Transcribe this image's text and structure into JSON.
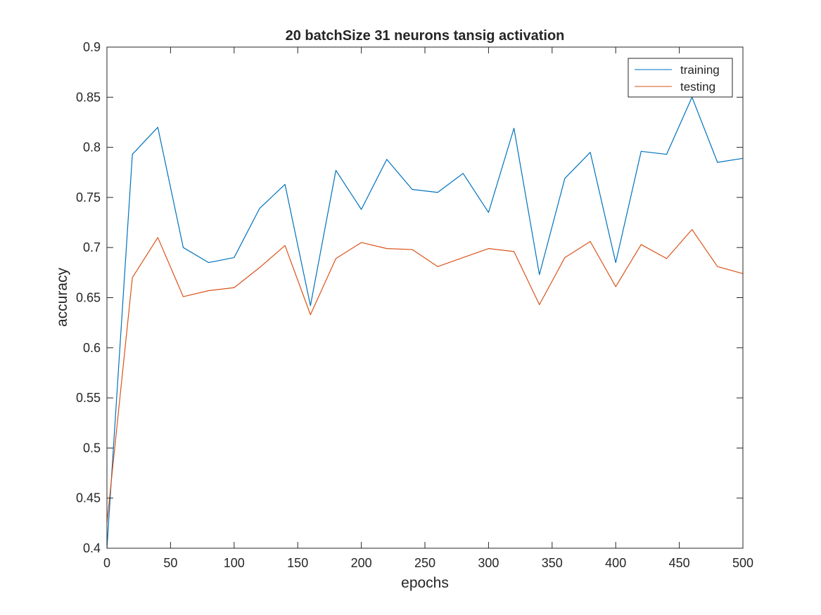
{
  "chart_data": {
    "type": "line",
    "title": "20 batchSize 31 neurons tansig activation",
    "xlabel": "epochs",
    "ylabel": "accuracy",
    "xlim": [
      0,
      500
    ],
    "ylim": [
      0.4,
      0.9
    ],
    "xticks": [
      0,
      50,
      100,
      150,
      200,
      250,
      300,
      350,
      400,
      450,
      500
    ],
    "yticks": [
      0.4,
      0.45,
      0.5,
      0.55,
      0.6,
      0.65,
      0.7,
      0.75,
      0.8,
      0.85,
      0.9
    ],
    "xtick_labels": [
      "0",
      "50",
      "100",
      "150",
      "200",
      "250",
      "300",
      "350",
      "400",
      "450",
      "500"
    ],
    "ytick_labels": [
      "0.4",
      "0.45",
      "0.5",
      "0.55",
      "0.6",
      "0.65",
      "0.7",
      "0.75",
      "0.8",
      "0.85",
      "0.9"
    ],
    "grid": false,
    "legend_position": "top-right",
    "x": [
      0,
      20,
      40,
      60,
      80,
      100,
      120,
      140,
      160,
      180,
      200,
      220,
      240,
      260,
      280,
      300,
      320,
      340,
      360,
      380,
      400,
      420,
      440,
      460,
      480,
      500
    ],
    "series": [
      {
        "name": "training",
        "color": "#0072BD",
        "values": [
          0.4,
          0.793,
          0.82,
          0.7,
          0.685,
          0.69,
          0.739,
          0.763,
          0.642,
          0.777,
          0.738,
          0.788,
          0.758,
          0.755,
          0.774,
          0.735,
          0.819,
          0.673,
          0.769,
          0.795,
          0.685,
          0.796,
          0.793,
          0.85,
          0.785,
          0.789
        ]
      },
      {
        "name": "testing",
        "color": "#D95319",
        "values": [
          0.425,
          0.67,
          0.71,
          0.651,
          0.657,
          0.66,
          0.68,
          0.702,
          0.633,
          0.689,
          0.705,
          0.699,
          0.698,
          0.681,
          0.69,
          0.699,
          0.696,
          0.643,
          0.69,
          0.706,
          0.661,
          0.703,
          0.689,
          0.718,
          0.681,
          0.674
        ]
      }
    ]
  }
}
